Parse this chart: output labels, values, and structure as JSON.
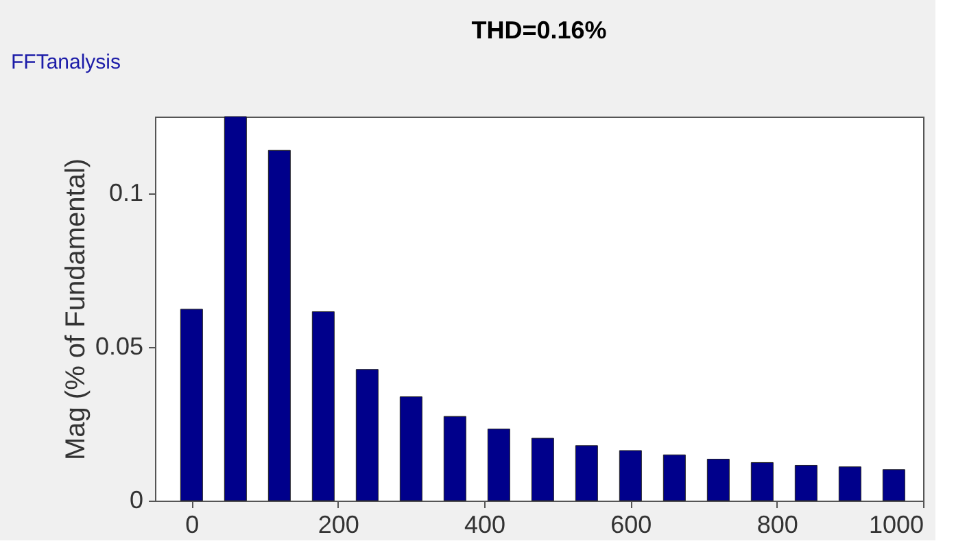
{
  "chart_data": {
    "type": "bar",
    "title": "THD=0.16%",
    "ylabel": "Mag (% of Fundamental)",
    "annotations": [
      "FFTanalysis"
    ],
    "x": [
      0,
      60,
      120,
      180,
      240,
      300,
      360,
      420,
      480,
      540,
      600,
      660,
      720,
      780,
      840,
      900,
      960
    ],
    "values": [
      0.0623,
      0.125,
      0.114,
      0.0615,
      0.0427,
      0.0338,
      0.0274,
      0.0233,
      0.0203,
      0.0179,
      0.0163,
      0.0149,
      0.0135,
      0.0124,
      0.0115,
      0.011,
      0.0101
    ],
    "color": "#00008b",
    "xlim": [
      -50,
      1000
    ],
    "xticks": [
      0,
      200,
      400,
      600,
      800,
      1000
    ],
    "ylim": [
      0,
      0.125
    ],
    "yticks": [
      0,
      0.05,
      0.1
    ],
    "grid": false
  }
}
